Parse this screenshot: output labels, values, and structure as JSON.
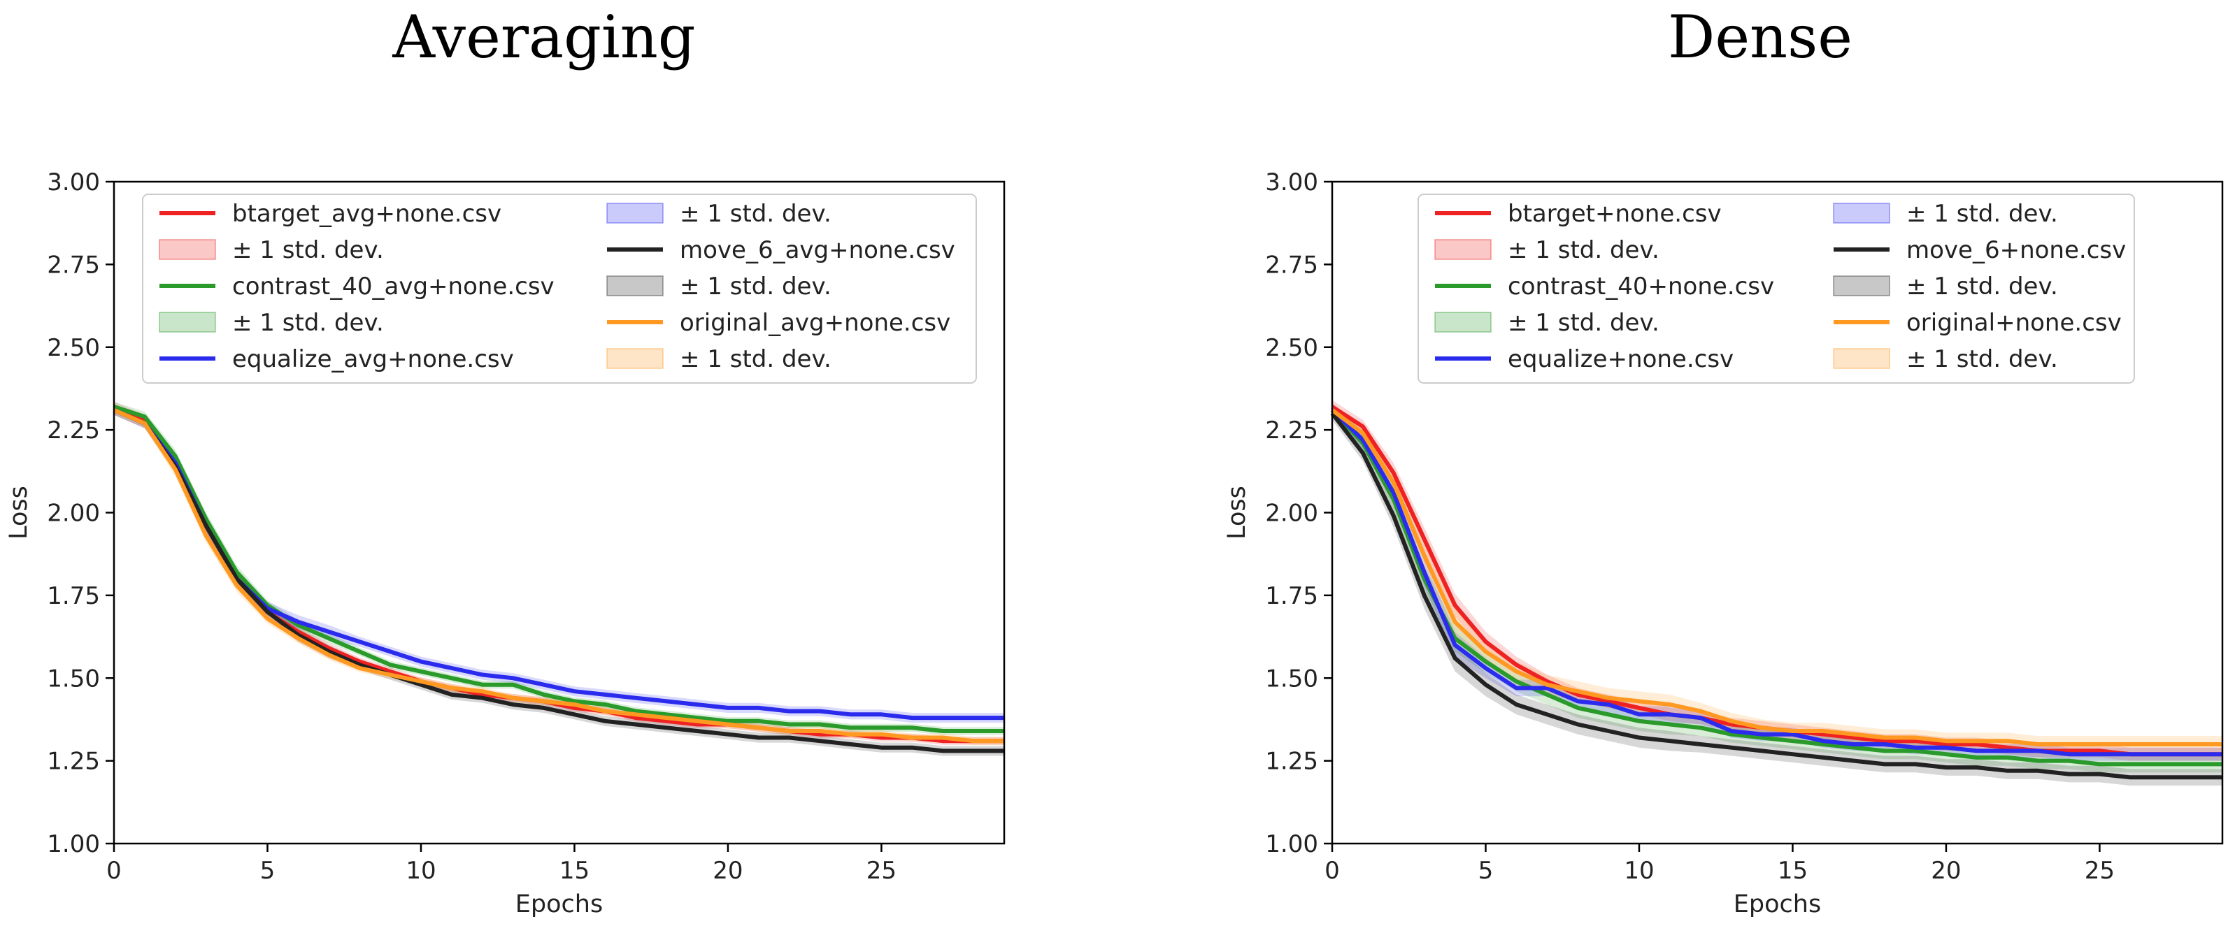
{
  "chart_data": [
    {
      "type": "line",
      "title": "Averaging",
      "xlabel": "Epochs",
      "ylabel": "Loss",
      "xlim": [
        0,
        29
      ],
      "ylim": [
        1.0,
        3.0
      ],
      "xticks": [
        "0",
        "5",
        "10",
        "15",
        "20",
        "25"
      ],
      "yticks": [
        "1.00",
        "1.25",
        "1.50",
        "1.75",
        "2.00",
        "2.25",
        "2.50",
        "2.75",
        "3.00"
      ],
      "legend_position": "upper-left",
      "band_label": "± 1 std. dev.",
      "x": [
        0,
        1,
        2,
        3,
        4,
        5,
        6,
        7,
        8,
        9,
        10,
        11,
        12,
        13,
        14,
        15,
        16,
        17,
        18,
        19,
        20,
        21,
        22,
        23,
        24,
        25,
        26,
        27,
        28,
        29
      ],
      "series": [
        {
          "name": "btarget_avg+none.csv",
          "color": "#ee2222",
          "values": [
            2.32,
            2.28,
            2.15,
            1.96,
            1.8,
            1.7,
            1.64,
            1.59,
            1.55,
            1.52,
            1.49,
            1.47,
            1.45,
            1.44,
            1.43,
            1.41,
            1.4,
            1.38,
            1.37,
            1.36,
            1.36,
            1.35,
            1.34,
            1.33,
            1.33,
            1.32,
            1.32,
            1.31,
            1.31,
            1.31
          ],
          "std": [
            0.015,
            0.015,
            0.02,
            0.02,
            0.02,
            0.015,
            0.015,
            0.015,
            0.012,
            0.012,
            0.012,
            0.012,
            0.012,
            0.012,
            0.012,
            0.012,
            0.012,
            0.012,
            0.012,
            0.012,
            0.012,
            0.012,
            0.012,
            0.012,
            0.012,
            0.012,
            0.012,
            0.012,
            0.012,
            0.012
          ]
        },
        {
          "name": "contrast_40_avg+none.csv",
          "color": "#2a9a2a",
          "values": [
            2.32,
            2.29,
            2.17,
            1.98,
            1.82,
            1.72,
            1.66,
            1.62,
            1.58,
            1.54,
            1.52,
            1.5,
            1.48,
            1.48,
            1.45,
            1.43,
            1.42,
            1.4,
            1.39,
            1.38,
            1.37,
            1.37,
            1.36,
            1.36,
            1.35,
            1.35,
            1.35,
            1.34,
            1.34,
            1.34
          ],
          "std": [
            0.015,
            0.015,
            0.02,
            0.02,
            0.02,
            0.015,
            0.015,
            0.015,
            0.012,
            0.012,
            0.012,
            0.012,
            0.012,
            0.012,
            0.012,
            0.012,
            0.012,
            0.012,
            0.012,
            0.012,
            0.012,
            0.012,
            0.012,
            0.012,
            0.012,
            0.012,
            0.012,
            0.012,
            0.012,
            0.012
          ]
        },
        {
          "name": "equalize_avg+none.csv",
          "color": "#2b2bee",
          "values": [
            2.31,
            2.27,
            2.15,
            1.96,
            1.8,
            1.71,
            1.67,
            1.64,
            1.61,
            1.58,
            1.55,
            1.53,
            1.51,
            1.5,
            1.48,
            1.46,
            1.45,
            1.44,
            1.43,
            1.42,
            1.41,
            1.41,
            1.4,
            1.4,
            1.39,
            1.39,
            1.38,
            1.38,
            1.38,
            1.38
          ],
          "std": [
            0.015,
            0.015,
            0.02,
            0.02,
            0.02,
            0.02,
            0.02,
            0.02,
            0.015,
            0.015,
            0.015,
            0.015,
            0.015,
            0.015,
            0.015,
            0.015,
            0.015,
            0.015,
            0.015,
            0.015,
            0.015,
            0.015,
            0.015,
            0.015,
            0.015,
            0.015,
            0.015,
            0.015,
            0.015,
            0.015
          ]
        },
        {
          "name": "move_6_avg+none.csv",
          "color": "#222222",
          "values": [
            2.31,
            2.27,
            2.14,
            1.96,
            1.8,
            1.7,
            1.63,
            1.58,
            1.54,
            1.51,
            1.48,
            1.45,
            1.44,
            1.42,
            1.41,
            1.39,
            1.37,
            1.36,
            1.35,
            1.34,
            1.33,
            1.32,
            1.32,
            1.31,
            1.3,
            1.29,
            1.29,
            1.28,
            1.28,
            1.28
          ],
          "std": [
            0.015,
            0.015,
            0.02,
            0.02,
            0.02,
            0.02,
            0.02,
            0.02,
            0.015,
            0.015,
            0.015,
            0.015,
            0.015,
            0.015,
            0.015,
            0.015,
            0.015,
            0.015,
            0.015,
            0.015,
            0.015,
            0.015,
            0.015,
            0.015,
            0.015,
            0.015,
            0.015,
            0.015,
            0.015,
            0.015
          ]
        },
        {
          "name": "original_avg+none.csv",
          "color": "#ff9922",
          "values": [
            2.31,
            2.27,
            2.13,
            1.93,
            1.78,
            1.68,
            1.62,
            1.57,
            1.53,
            1.51,
            1.49,
            1.47,
            1.46,
            1.44,
            1.43,
            1.42,
            1.4,
            1.39,
            1.38,
            1.37,
            1.36,
            1.35,
            1.34,
            1.34,
            1.33,
            1.33,
            1.32,
            1.32,
            1.31,
            1.31
          ],
          "std": [
            0.015,
            0.015,
            0.02,
            0.02,
            0.02,
            0.015,
            0.015,
            0.015,
            0.012,
            0.012,
            0.012,
            0.012,
            0.012,
            0.012,
            0.012,
            0.012,
            0.012,
            0.012,
            0.012,
            0.012,
            0.012,
            0.012,
            0.012,
            0.012,
            0.012,
            0.012,
            0.012,
            0.012,
            0.012,
            0.012
          ]
        }
      ]
    },
    {
      "type": "line",
      "title": "Dense",
      "xlabel": "Epochs",
      "ylabel": "Loss",
      "xlim": [
        0,
        29
      ],
      "ylim": [
        1.0,
        3.0
      ],
      "xticks": [
        "0",
        "5",
        "10",
        "15",
        "20",
        "25"
      ],
      "yticks": [
        "1.00",
        "1.25",
        "1.50",
        "1.75",
        "2.00",
        "2.25",
        "2.50",
        "2.75",
        "3.00"
      ],
      "legend_position": "upper-center",
      "band_label": "± 1 std. dev.",
      "x": [
        0,
        1,
        2,
        3,
        4,
        5,
        6,
        7,
        8,
        9,
        10,
        11,
        12,
        13,
        14,
        15,
        16,
        17,
        18,
        19,
        20,
        21,
        22,
        23,
        24,
        25,
        26,
        27,
        28,
        29
      ],
      "series": [
        {
          "name": "btarget+none.csv",
          "color": "#ee2222",
          "values": [
            2.32,
            2.26,
            2.12,
            1.92,
            1.72,
            1.61,
            1.54,
            1.49,
            1.45,
            1.43,
            1.41,
            1.39,
            1.38,
            1.36,
            1.35,
            1.34,
            1.33,
            1.32,
            1.31,
            1.31,
            1.3,
            1.3,
            1.29,
            1.28,
            1.28,
            1.28,
            1.27,
            1.27,
            1.27,
            1.27
          ],
          "std": [
            0.02,
            0.02,
            0.03,
            0.035,
            0.035,
            0.03,
            0.025,
            0.02,
            0.02,
            0.02,
            0.02,
            0.02,
            0.02,
            0.02,
            0.02,
            0.02,
            0.02,
            0.02,
            0.02,
            0.02,
            0.02,
            0.02,
            0.02,
            0.02,
            0.02,
            0.02,
            0.02,
            0.02,
            0.02,
            0.02
          ]
        },
        {
          "name": "contrast_40+none.csv",
          "color": "#2a9a2a",
          "values": [
            2.31,
            2.21,
            2.04,
            1.8,
            1.62,
            1.55,
            1.49,
            1.45,
            1.41,
            1.39,
            1.37,
            1.36,
            1.35,
            1.33,
            1.32,
            1.31,
            1.3,
            1.29,
            1.28,
            1.28,
            1.27,
            1.26,
            1.26,
            1.25,
            1.25,
            1.24,
            1.24,
            1.24,
            1.24,
            1.24
          ],
          "std": [
            0.02,
            0.025,
            0.035,
            0.04,
            0.04,
            0.035,
            0.03,
            0.03,
            0.03,
            0.03,
            0.03,
            0.03,
            0.025,
            0.025,
            0.025,
            0.025,
            0.025,
            0.025,
            0.025,
            0.025,
            0.025,
            0.025,
            0.025,
            0.025,
            0.025,
            0.025,
            0.025,
            0.025,
            0.025,
            0.025
          ]
        },
        {
          "name": "equalize+none.csv",
          "color": "#2b2bee",
          "values": [
            2.31,
            2.22,
            2.06,
            1.82,
            1.6,
            1.53,
            1.47,
            1.47,
            1.43,
            1.42,
            1.39,
            1.39,
            1.38,
            1.34,
            1.33,
            1.33,
            1.31,
            1.3,
            1.3,
            1.29,
            1.29,
            1.28,
            1.28,
            1.28,
            1.27,
            1.27,
            1.27,
            1.27,
            1.27,
            1.27
          ],
          "std": [
            0.02,
            0.025,
            0.035,
            0.04,
            0.04,
            0.03,
            0.025,
            0.025,
            0.025,
            0.025,
            0.025,
            0.025,
            0.02,
            0.02,
            0.02,
            0.02,
            0.02,
            0.02,
            0.02,
            0.02,
            0.02,
            0.02,
            0.02,
            0.02,
            0.02,
            0.02,
            0.02,
            0.02,
            0.02,
            0.02
          ]
        },
        {
          "name": "move_6+none.csv",
          "color": "#222222",
          "values": [
            2.3,
            2.18,
            1.99,
            1.75,
            1.56,
            1.48,
            1.42,
            1.39,
            1.36,
            1.34,
            1.32,
            1.31,
            1.3,
            1.29,
            1.28,
            1.27,
            1.26,
            1.25,
            1.24,
            1.24,
            1.23,
            1.23,
            1.22,
            1.22,
            1.21,
            1.21,
            1.2,
            1.2,
            1.2,
            1.2
          ],
          "std": [
            0.02,
            0.025,
            0.035,
            0.04,
            0.04,
            0.035,
            0.03,
            0.03,
            0.03,
            0.03,
            0.03,
            0.03,
            0.025,
            0.025,
            0.025,
            0.025,
            0.025,
            0.025,
            0.025,
            0.025,
            0.025,
            0.025,
            0.025,
            0.025,
            0.025,
            0.025,
            0.025,
            0.025,
            0.025,
            0.025
          ]
        },
        {
          "name": "original+none.csv",
          "color": "#ff9922",
          "values": [
            2.31,
            2.24,
            2.09,
            1.87,
            1.67,
            1.58,
            1.52,
            1.48,
            1.46,
            1.44,
            1.43,
            1.42,
            1.4,
            1.37,
            1.35,
            1.34,
            1.34,
            1.33,
            1.32,
            1.32,
            1.31,
            1.31,
            1.31,
            1.3,
            1.3,
            1.3,
            1.3,
            1.3,
            1.3,
            1.3
          ],
          "std": [
            0.02,
            0.025,
            0.035,
            0.04,
            0.04,
            0.035,
            0.03,
            0.03,
            0.03,
            0.03,
            0.03,
            0.03,
            0.025,
            0.025,
            0.025,
            0.025,
            0.025,
            0.025,
            0.025,
            0.025,
            0.025,
            0.025,
            0.025,
            0.025,
            0.025,
            0.025,
            0.025,
            0.025,
            0.025,
            0.025
          ]
        }
      ]
    }
  ]
}
